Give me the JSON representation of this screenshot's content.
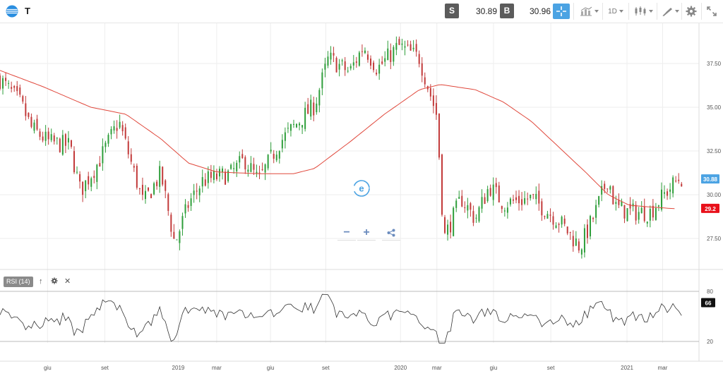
{
  "header": {
    "symbol": "T",
    "sell_label": "S",
    "sell_price": "30.89",
    "buy_label": "B",
    "buy_price": "30.96",
    "interval": "1D",
    "icons": [
      "att-logo-icon",
      "crosshair-icon",
      "chart-type-icon",
      "candlestick-icon",
      "draw-icon",
      "gear-icon",
      "expand-icon"
    ]
  },
  "zoom": {
    "minus": "−",
    "plus": "+"
  },
  "rsi": {
    "label": "RSI (14)",
    "up": "↑",
    "close": "✕",
    "current": "66",
    "tick_high": "80",
    "tick_low": "20"
  },
  "colors": {
    "accent": "#4ba3e3",
    "ma": "#e0483c",
    "candle_up": "#2e9e3a",
    "candle_down": "#c23a3a",
    "price_badge": "#4ba3e3",
    "ma_badge": "#e8101a"
  },
  "chart_data": {
    "type": "candlestick",
    "price_ticks": [
      "37.50",
      "35.00",
      "32.50",
      "30.00",
      "27.50"
    ],
    "price_badge": "30.88",
    "ma_badge": "29.2",
    "x_labels": [
      "giu",
      "set",
      "2019",
      "mar",
      "giu",
      "set",
      "2020",
      "mar",
      "giu",
      "set",
      "2021",
      "mar"
    ],
    "close_anchors": [
      [
        0,
        36.6
      ],
      [
        0.03,
        35.2
      ],
      [
        0.045,
        33.8
      ],
      [
        0.07,
        33.0
      ],
      [
        0.1,
        32.8
      ],
      [
        0.115,
        30.2
      ],
      [
        0.14,
        31.8
      ],
      [
        0.17,
        34.2
      ],
      [
        0.19,
        31.5
      ],
      [
        0.205,
        29.5
      ],
      [
        0.23,
        31.2
      ],
      [
        0.25,
        27.2
      ],
      [
        0.27,
        29.5
      ],
      [
        0.29,
        30.8
      ],
      [
        0.33,
        31.2
      ],
      [
        0.35,
        32.0
      ],
      [
        0.37,
        30.8
      ],
      [
        0.4,
        33.0
      ],
      [
        0.43,
        34.3
      ],
      [
        0.45,
        35.1
      ],
      [
        0.47,
        37.8
      ],
      [
        0.5,
        37.0
      ],
      [
        0.52,
        38.5
      ],
      [
        0.54,
        37.2
      ],
      [
        0.57,
        38.5
      ],
      [
        0.6,
        37.8
      ],
      [
        0.625,
        34.5
      ],
      [
        0.635,
        27.5
      ],
      [
        0.66,
        29.8
      ],
      [
        0.68,
        28.6
      ],
      [
        0.7,
        30.5
      ],
      [
        0.72,
        29.5
      ],
      [
        0.76,
        29.8
      ],
      [
        0.8,
        28.5
      ],
      [
        0.83,
        27.0
      ],
      [
        0.85,
        28.8
      ],
      [
        0.87,
        31.0
      ],
      [
        0.88,
        29.3
      ],
      [
        0.9,
        29.0
      ],
      [
        0.93,
        29.0
      ],
      [
        0.95,
        30.0
      ],
      [
        0.97,
        30.9
      ]
    ],
    "ma_anchors": [
      [
        0,
        37.1
      ],
      [
        0.06,
        36.2
      ],
      [
        0.13,
        35.0
      ],
      [
        0.18,
        34.6
      ],
      [
        0.23,
        33.2
      ],
      [
        0.27,
        31.8
      ],
      [
        0.31,
        31.3
      ],
      [
        0.37,
        31.2
      ],
      [
        0.42,
        31.2
      ],
      [
        0.45,
        31.5
      ],
      [
        0.5,
        33.0
      ],
      [
        0.55,
        34.6
      ],
      [
        0.6,
        36.0
      ],
      [
        0.63,
        36.3
      ],
      [
        0.68,
        36.0
      ],
      [
        0.72,
        35.3
      ],
      [
        0.76,
        34.2
      ],
      [
        0.8,
        32.7
      ],
      [
        0.84,
        31.2
      ],
      [
        0.87,
        30.0
      ],
      [
        0.9,
        29.4
      ],
      [
        0.93,
        29.3
      ],
      [
        0.965,
        29.2
      ]
    ],
    "rsi_values_range": [
      20,
      80
    ]
  }
}
